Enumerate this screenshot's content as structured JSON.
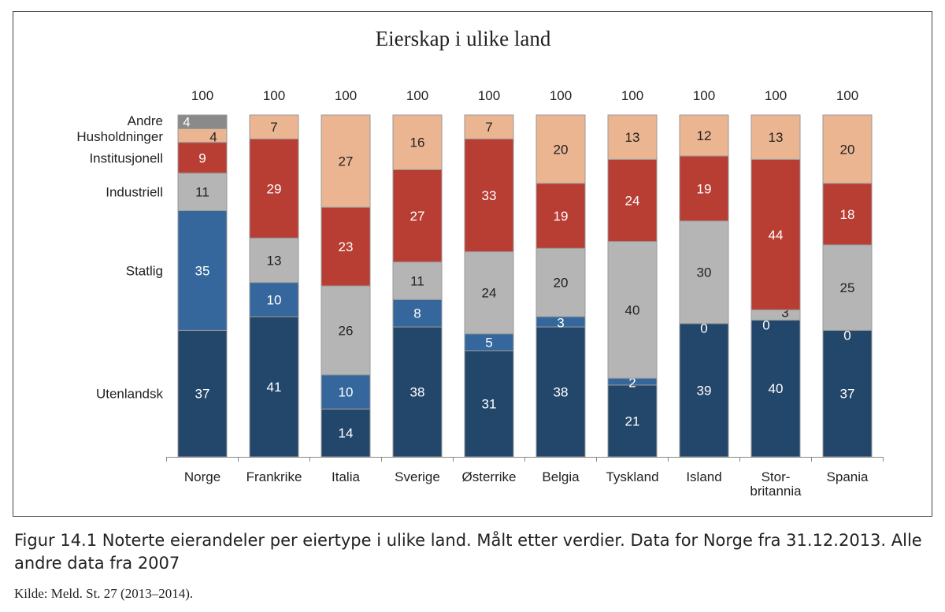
{
  "chart_data": {
    "type": "bar",
    "stacked": true,
    "title": "Eierskap i ulike land",
    "xlabel": "",
    "ylabel": "",
    "ylim": [
      0,
      100
    ],
    "grid": false,
    "legend_placement": "left",
    "categories": [
      "Norge",
      "Frankrike",
      "Italia",
      "Sverige",
      "Østerrike",
      "Belgia",
      "Tyskland",
      "Island",
      "Stor-\nbritannia",
      "Spania"
    ],
    "totals": [
      100,
      100,
      100,
      100,
      100,
      100,
      100,
      100,
      100,
      100
    ],
    "series": [
      {
        "name": "Utenlandsk",
        "color": "#23476b",
        "values": [
          37,
          41,
          14,
          38,
          31,
          38,
          21,
          39,
          40,
          37
        ]
      },
      {
        "name": "Statlig",
        "color": "#35679c",
        "values": [
          35,
          10,
          10,
          8,
          5,
          3,
          2,
          0,
          0,
          0
        ]
      },
      {
        "name": "Industriell",
        "color": "#b5b5b5",
        "values": [
          11,
          13,
          26,
          11,
          24,
          20,
          40,
          30,
          3,
          25
        ]
      },
      {
        "name": "Institusjonell",
        "color": "#b83d33",
        "values": [
          9,
          29,
          23,
          27,
          33,
          19,
          24,
          19,
          44,
          18
        ]
      },
      {
        "name": "Husholdninger",
        "color": "#ebb592",
        "values": [
          4,
          7,
          27,
          16,
          7,
          20,
          13,
          12,
          13,
          20
        ]
      },
      {
        "name": "Andre",
        "color": "#8a8a8a",
        "values": [
          4,
          null,
          null,
          null,
          null,
          null,
          null,
          null,
          null,
          null
        ]
      }
    ]
  },
  "caption": {
    "figure_text": "Figur 14.1  Noterte eierandeler per eiertype i ulike land. Målt etter verdier. Data for Norge fra 31.12.2013. Alle andre data fra 2007",
    "source": "Kilde: Meld. St. 27 (2013–2014)."
  }
}
